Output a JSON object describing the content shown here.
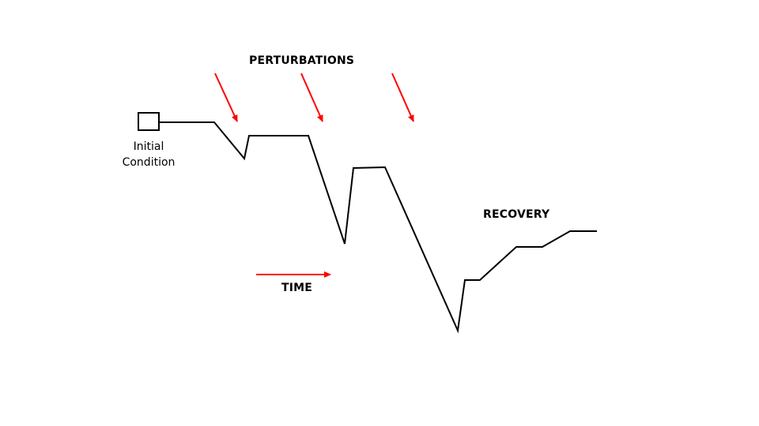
{
  "labels": {
    "perturbations": "PERTURBATIONS",
    "initial_line1": "Initial",
    "initial_line2": "Condition",
    "recovery": "RECOVERY",
    "time": "TIME"
  },
  "colors": {
    "line": "#000000",
    "arrow": "#ff0000"
  },
  "icons": {
    "initial_condition": "square-box-icon",
    "perturbation_arrows": "arrow-down-right-icon",
    "time_arrow": "arrow-right-icon"
  }
}
